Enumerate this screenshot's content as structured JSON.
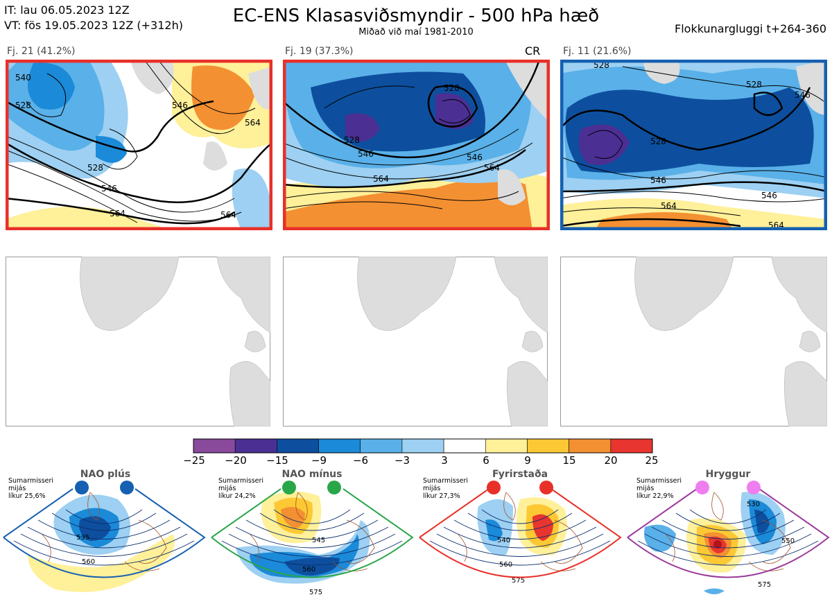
{
  "header": {
    "it_line": "IT: lau 06.05.2023 12Z",
    "vt_line": "VT: fös 19.05.2023 12Z  (+312h)",
    "title": "EC-ENS Klasasviðsmyndir - 500 hPa hæð",
    "subtitle": "Miðað við maí 1981-2010",
    "window": "Flokkunargluggi t+264-360"
  },
  "clusters": [
    {
      "label": "Fj. 21 (41.2%)",
      "frame_color": "#e8302a",
      "tag": "",
      "contours": [
        "540",
        "528",
        "546",
        "564",
        "564",
        "528",
        "546",
        "564"
      ]
    },
    {
      "label": "Fj. 19 (37.3%)",
      "frame_color": "#e8302a",
      "tag": "CR",
      "contours": [
        "528",
        "528",
        "546",
        "564",
        "564",
        "546"
      ]
    },
    {
      "label": "Fj. 11 (21.6%)",
      "frame_color": "#1560b0",
      "tag": "",
      "contours": [
        "528",
        "528",
        "546",
        "528",
        "546",
        "564",
        "564",
        "546"
      ]
    }
  ],
  "colorbar": {
    "ticks": [
      "−25",
      "−20",
      "−15",
      "−9",
      "−6",
      "−3",
      "3",
      "6",
      "9",
      "15",
      "20",
      "25"
    ],
    "colors": [
      "#8a4a9c",
      "#4b2f93",
      "#0d4f9e",
      "#1b8ad8",
      "#5ab0e8",
      "#9dd0f2",
      "#ffffff",
      "#fff09a",
      "#fcc934",
      "#f39032",
      "#e8352f",
      "#b3141a"
    ]
  },
  "patterns": [
    {
      "name": "NAO plús",
      "note": [
        "Sumarmisseri",
        "mijás",
        "líkur 25,6%"
      ],
      "color": "#1560b0",
      "contours": [
        "535",
        "560"
      ]
    },
    {
      "name": "NAO mínus",
      "note": [
        "Sumarmisseri",
        "mijás",
        "líkur 24,2%"
      ],
      "color": "#2aa64a",
      "contours": [
        "545",
        "560",
        "575"
      ]
    },
    {
      "name": "Fyrirstaða",
      "note": [
        "Sumarmisseri",
        "mijás",
        "líkur 27,3%"
      ],
      "color": "#e8302a",
      "contours": [
        "540",
        "560",
        "575"
      ]
    },
    {
      "name": "Hryggur",
      "note": [
        "Sumarmisseri",
        "mijás",
        "líkur 22,9%"
      ],
      "color": "#9b3a9a",
      "contours": [
        "530",
        "550",
        "575"
      ]
    }
  ]
}
